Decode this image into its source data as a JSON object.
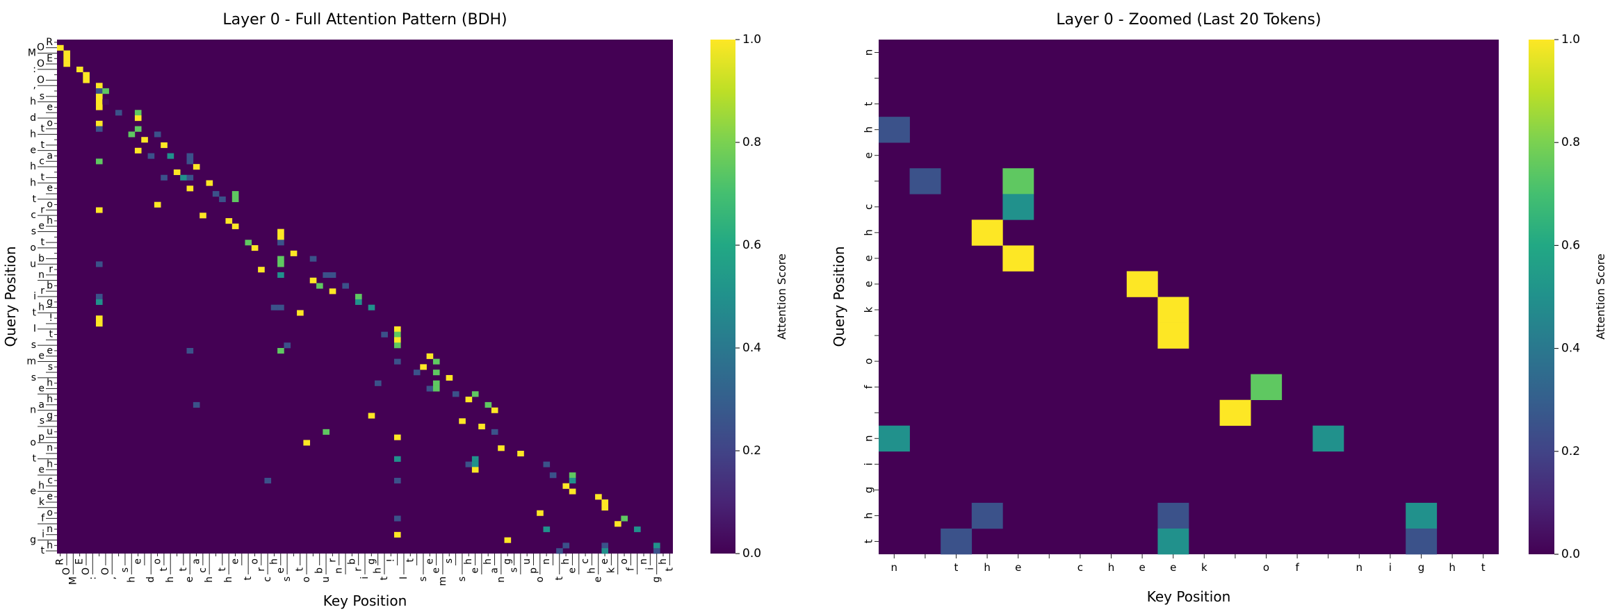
{
  "chart_data": [
    {
      "type": "heatmap",
      "title": "Layer 0 - Full Attention Pattern (BDH)",
      "xlabel": "Key Position",
      "ylabel": "Query Position",
      "colormap": "viridis",
      "colorbar_label": "Attention Score",
      "colorbar_ticks": [
        "0.0",
        "0.2",
        "0.4",
        "0.6",
        "0.8",
        "1.0"
      ],
      "vmin": 0,
      "vmax": 1,
      "default_value": 0,
      "tokens": [
        "R",
        "O",
        "M",
        "E",
        "O",
        ":",
        " ",
        "O",
        ",",
        " ",
        "s",
        "h",
        "e",
        " ",
        "d",
        "o",
        "t",
        "h",
        " ",
        "t",
        "e",
        "a",
        "c",
        "h",
        " ",
        "t",
        "h",
        "e",
        " ",
        "t",
        "o",
        "r",
        "c",
        "h",
        "e",
        "s",
        " ",
        "t",
        "o",
        " ",
        "b",
        "u",
        "r",
        "n",
        " ",
        "b",
        "r",
        "i",
        "g",
        "h",
        "t",
        "!",
        " ",
        "I",
        "t",
        " ",
        "s",
        "e",
        "e",
        "m",
        "s",
        " ",
        "s",
        "h",
        "e",
        " ",
        "h",
        "a",
        "n",
        "g",
        "s",
        " ",
        "u",
        "p",
        "o",
        "n",
        " ",
        "t",
        "h",
        "e",
        " ",
        "c",
        "h",
        "e",
        "e",
        "k",
        " ",
        "o",
        "f",
        " ",
        "n",
        "i",
        "g",
        "h",
        "t"
      ],
      "cells": [
        [
          1,
          0,
          1
        ],
        [
          2,
          1,
          1
        ],
        [
          3,
          1,
          1
        ],
        [
          4,
          1,
          1
        ],
        [
          5,
          3,
          1
        ],
        [
          6,
          4,
          1
        ],
        [
          7,
          4,
          1
        ],
        [
          8,
          6,
          1
        ],
        [
          9,
          6,
          0.25
        ],
        [
          9,
          7,
          0.75
        ],
        [
          10,
          6,
          1
        ],
        [
          11,
          6,
          1
        ],
        [
          11,
          7,
          0.03
        ],
        [
          12,
          6,
          1
        ],
        [
          13,
          9,
          0.25
        ],
        [
          13,
          12,
          0.75
        ],
        [
          14,
          12,
          1
        ],
        [
          15,
          6,
          1
        ],
        [
          16,
          6,
          0.25
        ],
        [
          16,
          12,
          0.75
        ],
        [
          17,
          11,
          0.75
        ],
        [
          17,
          15,
          0.25
        ],
        [
          18,
          13,
          1
        ],
        [
          19,
          16,
          1
        ],
        [
          20,
          12,
          1
        ],
        [
          21,
          14,
          0.25
        ],
        [
          21,
          17,
          0.5
        ],
        [
          21,
          20,
          0.25
        ],
        [
          22,
          6,
          0.75
        ],
        [
          22,
          20,
          0.25
        ],
        [
          23,
          21,
          1
        ],
        [
          24,
          18,
          1
        ],
        [
          25,
          16,
          0.25
        ],
        [
          25,
          19,
          0.5
        ],
        [
          25,
          20,
          0.25
        ],
        [
          26,
          23,
          1
        ],
        [
          27,
          20,
          1
        ],
        [
          28,
          24,
          0.25
        ],
        [
          28,
          27,
          0.75
        ],
        [
          29,
          25,
          0.25
        ],
        [
          29,
          27,
          0.75
        ],
        [
          30,
          15,
          1
        ],
        [
          31,
          6,
          1
        ],
        [
          32,
          22,
          1
        ],
        [
          33,
          26,
          1
        ],
        [
          34,
          27,
          1
        ],
        [
          35,
          34,
          1
        ],
        [
          36,
          34,
          1
        ],
        [
          37,
          29,
          0.75
        ],
        [
          37,
          34,
          0.25
        ],
        [
          38,
          30,
          1
        ],
        [
          39,
          36,
          1
        ],
        [
          40,
          34,
          0.75
        ],
        [
          40,
          39,
          0.25
        ],
        [
          41,
          6,
          0.25
        ],
        [
          41,
          34,
          0.75
        ],
        [
          42,
          31,
          1
        ],
        [
          43,
          34,
          0.5
        ],
        [
          43,
          41,
          0.25
        ],
        [
          43,
          42,
          0.25
        ],
        [
          44,
          39,
          1
        ],
        [
          45,
          40,
          0.75
        ],
        [
          45,
          44,
          0.25
        ],
        [
          46,
          42,
          1
        ],
        [
          47,
          6,
          0.25
        ],
        [
          47,
          46,
          0.75
        ],
        [
          48,
          6,
          0.5
        ],
        [
          48,
          46,
          0.5
        ],
        [
          49,
          33,
          0.25
        ],
        [
          49,
          34,
          0.25
        ],
        [
          49,
          48,
          0.5
        ],
        [
          50,
          37,
          1
        ],
        [
          51,
          6,
          1
        ],
        [
          52,
          6,
          1
        ],
        [
          53,
          52,
          1
        ],
        [
          54,
          50,
          0.25
        ],
        [
          54,
          52,
          0.75
        ],
        [
          55,
          52,
          1
        ],
        [
          56,
          35,
          0.25
        ],
        [
          56,
          52,
          0.75
        ],
        [
          57,
          20,
          0.25
        ],
        [
          57,
          34,
          0.75
        ],
        [
          58,
          57,
          1
        ],
        [
          59,
          52,
          0.25
        ],
        [
          59,
          58,
          0.75
        ],
        [
          60,
          56,
          1
        ],
        [
          61,
          55,
          0.25
        ],
        [
          61,
          58,
          0.75
        ],
        [
          62,
          60,
          1
        ],
        [
          63,
          49,
          0.25
        ],
        [
          63,
          58,
          0.75
        ],
        [
          64,
          57,
          0.25
        ],
        [
          64,
          58,
          0.75
        ],
        [
          65,
          61,
          0.25
        ],
        [
          65,
          64,
          0.75
        ],
        [
          66,
          63,
          1
        ],
        [
          67,
          21,
          0.25
        ],
        [
          67,
          66,
          0.75
        ],
        [
          68,
          67,
          1
        ],
        [
          69,
          48,
          1
        ],
        [
          70,
          62,
          1
        ],
        [
          71,
          65,
          1
        ],
        [
          72,
          41,
          0.75
        ],
        [
          72,
          67,
          0.25
        ],
        [
          73,
          52,
          1
        ],
        [
          74,
          38,
          1
        ],
        [
          75,
          68,
          1
        ],
        [
          76,
          71,
          1
        ],
        [
          77,
          52,
          0.5
        ],
        [
          77,
          64,
          0.5
        ],
        [
          78,
          63,
          0.25
        ],
        [
          78,
          64,
          0.5
        ],
        [
          78,
          75,
          0.25
        ],
        [
          79,
          64,
          1
        ],
        [
          80,
          76,
          0.25
        ],
        [
          80,
          79,
          0.75
        ],
        [
          81,
          32,
          0.25
        ],
        [
          81,
          52,
          0.25
        ],
        [
          81,
          79,
          0.5
        ],
        [
          82,
          78,
          1
        ],
        [
          83,
          79,
          1
        ],
        [
          84,
          83,
          1
        ],
        [
          85,
          84,
          1
        ],
        [
          86,
          84,
          1
        ],
        [
          87,
          74,
          1
        ],
        [
          88,
          52,
          0.25
        ],
        [
          88,
          87,
          0.75
        ],
        [
          89,
          86,
          1
        ],
        [
          90,
          75,
          0.5
        ],
        [
          90,
          89,
          0.5
        ],
        [
          91,
          52,
          1
        ],
        [
          92,
          69,
          1
        ],
        [
          93,
          78,
          0.25
        ],
        [
          93,
          84,
          0.25
        ],
        [
          93,
          92,
          0.5
        ],
        [
          94,
          77,
          0.25
        ],
        [
          94,
          84,
          0.5
        ],
        [
          94,
          92,
          0.25
        ]
      ]
    },
    {
      "type": "heatmap",
      "title": "Layer 0 - Zoomed (Last 20 Tokens)",
      "xlabel": "Key Position",
      "ylabel": "Query Position",
      "colormap": "viridis",
      "colorbar_label": "Attention Score",
      "colorbar_ticks": [
        "0.0",
        "0.2",
        "0.4",
        "0.6",
        "0.8",
        "1.0"
      ],
      "vmin": 0,
      "vmax": 1,
      "default_value": 0,
      "tokens": [
        "n",
        " ",
        "t",
        "h",
        "e",
        " ",
        "c",
        "h",
        "e",
        "e",
        "k",
        " ",
        "o",
        "f",
        " ",
        "n",
        "i",
        "g",
        "h",
        "t"
      ],
      "cells": [
        [
          3,
          0,
          0.25
        ],
        [
          5,
          1,
          0.25
        ],
        [
          5,
          4,
          0.75
        ],
        [
          6,
          4,
          0.5
        ],
        [
          7,
          3,
          1
        ],
        [
          8,
          4,
          1
        ],
        [
          9,
          8,
          1
        ],
        [
          10,
          9,
          1
        ],
        [
          11,
          9,
          1
        ],
        [
          13,
          12,
          0.75
        ],
        [
          14,
          11,
          1
        ],
        [
          15,
          0,
          0.5
        ],
        [
          15,
          14,
          0.5
        ],
        [
          18,
          3,
          0.25
        ],
        [
          18,
          9,
          0.25
        ],
        [
          18,
          17,
          0.5
        ],
        [
          19,
          2,
          0.25
        ],
        [
          19,
          9,
          0.5
        ],
        [
          19,
          17,
          0.25
        ]
      ]
    }
  ]
}
